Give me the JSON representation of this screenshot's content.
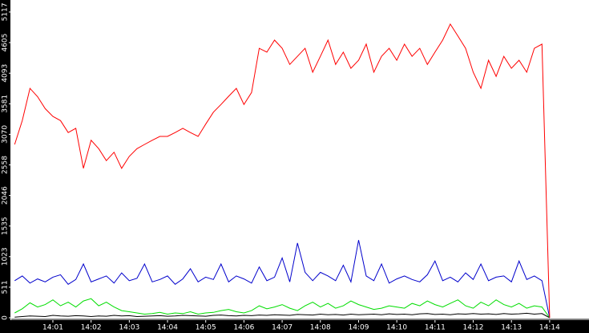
{
  "chart_data": {
    "type": "line",
    "x": [
      0,
      0.2,
      0.4,
      0.6,
      0.8,
      1.0,
      1.2,
      1.4,
      1.6,
      1.8,
      2.0,
      2.2,
      2.4,
      2.6,
      2.8,
      3.0,
      3.2,
      3.4,
      3.6,
      3.8,
      4.0,
      4.2,
      4.4,
      4.6,
      4.8,
      5.0,
      5.2,
      5.4,
      5.6,
      5.8,
      6.0,
      6.2,
      6.4,
      6.6,
      6.8,
      7.0,
      7.2,
      7.4,
      7.6,
      7.8,
      8.0,
      8.2,
      8.4,
      8.6,
      8.8,
      9.0,
      9.2,
      9.4,
      9.6,
      9.8,
      10.0,
      10.2,
      10.4,
      10.6,
      10.8,
      11.0,
      11.2,
      11.4,
      11.6,
      11.8,
      12.0,
      12.2,
      12.4,
      12.6,
      12.8,
      13.0,
      13.2,
      13.4,
      13.6,
      13.8,
      14.0
    ],
    "xlim": [
      -0.09,
      15.03
    ],
    "xticks": [
      {
        "value": 1,
        "label": "14:01"
      },
      {
        "value": 2,
        "label": "14:02"
      },
      {
        "value": 3,
        "label": "14:03"
      },
      {
        "value": 4,
        "label": "14:04"
      },
      {
        "value": 5,
        "label": "14:05"
      },
      {
        "value": 6,
        "label": "14:06"
      },
      {
        "value": 7,
        "label": "14:07"
      },
      {
        "value": 8,
        "label": "14:08"
      },
      {
        "value": 9,
        "label": "14:09"
      },
      {
        "value": 10,
        "label": "14:10"
      },
      {
        "value": 11,
        "label": "14:11"
      },
      {
        "value": 12,
        "label": "14:12"
      },
      {
        "value": 13,
        "label": "14:13"
      },
      {
        "value": 14,
        "label": "14:14"
      }
    ],
    "ylim": [
      -27,
      5318
    ],
    "yticks": [
      0,
      511,
      1023,
      1535,
      2046,
      2558,
      3070,
      3581,
      4093,
      4605,
      5117
    ],
    "series": [
      {
        "color": "#ff0000",
        "values": [
          2900,
          3300,
          3840,
          3700,
          3500,
          3370,
          3300,
          3100,
          3170,
          2500,
          2970,
          2830,
          2630,
          2770,
          2500,
          2700,
          2830,
          2900,
          2970,
          3035,
          3035,
          3100,
          3170,
          3100,
          3035,
          3240,
          3440,
          3570,
          3707,
          3840,
          3570,
          3770,
          4510,
          4445,
          4647,
          4510,
          4240,
          4375,
          4510,
          4110,
          4375,
          4647,
          4240,
          4445,
          4175,
          4310,
          4580,
          4110,
          4375,
          4510,
          4310,
          4580,
          4375,
          4510,
          4240,
          4445,
          4647,
          4915,
          4715,
          4510,
          4110,
          3840,
          4310,
          4040,
          4375,
          4175,
          4310,
          4110,
          4510,
          4580,
          0
        ]
      },
      {
        "color": "#0000cc",
        "values": [
          620,
          700,
          580,
          650,
          600,
          680,
          720,
          560,
          640,
          900,
          600,
          650,
          700,
          580,
          750,
          620,
          660,
          900,
          600,
          640,
          700,
          560,
          650,
          820,
          600,
          680,
          640,
          900,
          600,
          700,
          650,
          580,
          850,
          620,
          680,
          1000,
          600,
          1250,
          760,
          620,
          760,
          700,
          620,
          880,
          600,
          1300,
          700,
          620,
          900,
          580,
          650,
          700,
          640,
          600,
          720,
          950,
          620,
          680,
          600,
          750,
          640,
          900,
          620,
          680,
          700,
          600,
          950,
          640,
          700,
          620,
          0
        ]
      },
      {
        "color": "#00dd00",
        "values": [
          80,
          150,
          250,
          180,
          220,
          300,
          200,
          260,
          180,
          280,
          320,
          200,
          260,
          180,
          120,
          100,
          80,
          60,
          70,
          90,
          60,
          80,
          70,
          100,
          60,
          80,
          90,
          120,
          140,
          100,
          80,
          120,
          200,
          150,
          180,
          220,
          160,
          120,
          200,
          260,
          180,
          240,
          160,
          200,
          280,
          220,
          180,
          140,
          160,
          200,
          180,
          160,
          240,
          200,
          280,
          220,
          180,
          240,
          300,
          200,
          160,
          260,
          200,
          300,
          220,
          180,
          240,
          160,
          200,
          180,
          0
        ]
      },
      {
        "color": "#000000",
        "values": [
          10,
          20,
          30,
          25,
          20,
          40,
          30,
          25,
          35,
          30,
          20,
          30,
          25,
          40,
          30,
          35,
          20,
          25,
          30,
          35,
          25,
          30,
          40,
          35,
          30,
          25,
          40,
          45,
          35,
          30,
          40,
          35,
          45,
          40,
          50,
          45,
          40,
          55,
          50,
          45,
          60,
          50,
          55,
          45,
          60,
          50,
          55,
          60,
          50,
          65,
          55,
          60,
          50,
          65,
          70,
          55,
          60,
          50,
          65,
          60,
          70,
          60,
          65,
          55,
          70,
          60,
          65,
          75,
          60,
          70,
          0
        ]
      }
    ]
  }
}
